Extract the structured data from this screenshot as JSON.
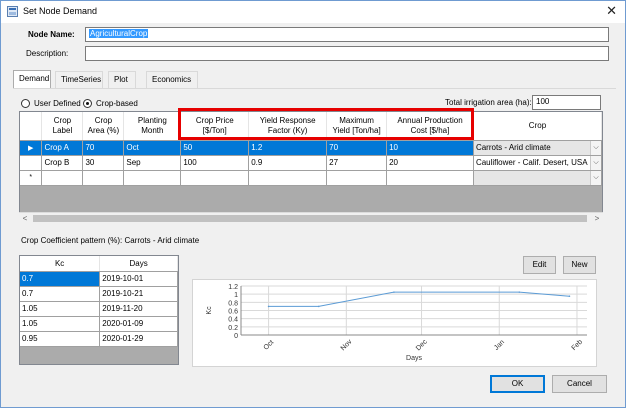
{
  "window": {
    "title": "Set Node Demand",
    "close_glyph": "✕"
  },
  "node_name": {
    "label": "Node Name:",
    "value": "AgriculturalCrop"
  },
  "description": {
    "label": "Description:",
    "value": ""
  },
  "tabs": [
    {
      "label": "Demand",
      "active": true
    },
    {
      "label": "TimeSeries",
      "active": false
    },
    {
      "label": "Plot",
      "active": false
    },
    {
      "label": "Economics",
      "active": false
    }
  ],
  "mode": {
    "user_defined_label": "User Defined",
    "crop_based_label": "Crop-based",
    "selected": "crop_based"
  },
  "irrigation": {
    "label": "Total irrigation area (ha):",
    "value": "100"
  },
  "crop_table": {
    "headers": [
      "Crop\nLabel",
      "Crop\nArea (%)",
      "Planting\nMonth",
      "Crop Price\n[$/Ton]",
      "Yield Response\nFactor (Ky)",
      "Maximum\nYield [Ton/ha]",
      "Annual Production\nCost [$/ha]",
      "Crop"
    ],
    "rows": [
      {
        "marker": "▶",
        "cells": [
          "Crop A",
          "70",
          "Oct",
          "50",
          "1.2",
          "70",
          "10",
          "Carrots - Arid climate"
        ]
      },
      {
        "marker": "",
        "cells": [
          "Crop B",
          "30",
          "Sep",
          "100",
          "0.9",
          "27",
          "20",
          "Cauliflower - Calif. Desert, USA"
        ]
      }
    ],
    "new_row_marker": "*"
  },
  "kc_pattern": {
    "label": "Crop Coefficient pattern (%): Carrots - Arid climate",
    "headers": [
      "Kc",
      "Days"
    ],
    "rows": [
      [
        "0.7",
        "2019-10-01"
      ],
      [
        "0.7",
        "2019-10-21"
      ],
      [
        "1.05",
        "2019-11-20"
      ],
      [
        "1.05",
        "2020-01-09"
      ],
      [
        "0.95",
        "2020-01-29"
      ]
    ]
  },
  "buttons": {
    "edit": "Edit",
    "new": "New",
    "ok": "OK",
    "cancel": "Cancel"
  },
  "chart_data": {
    "type": "line",
    "x": [
      "2019-10-01",
      "2019-10-21",
      "2019-11-20",
      "2020-01-09",
      "2020-01-29"
    ],
    "y": [
      0.7,
      0.7,
      1.05,
      1.05,
      0.95
    ],
    "xlabel": "Days",
    "ylabel": "Kc",
    "ylim": [
      0,
      1.2
    ],
    "yticks": [
      "0",
      "0.2",
      "0.4",
      "0.6",
      "0.8",
      "1",
      "1.2"
    ],
    "xticks": [
      "Oct",
      "Nov",
      "Dec",
      "Jan",
      "Feb"
    ],
    "xtick_dates": [
      "2019-10-01",
      "2019-11-01",
      "2019-12-01",
      "2020-01-01",
      "2020-02-01"
    ],
    "x_range": [
      "2019-09-20",
      "2020-02-05"
    ],
    "grid": true,
    "line_color": "#5b9bd5"
  }
}
